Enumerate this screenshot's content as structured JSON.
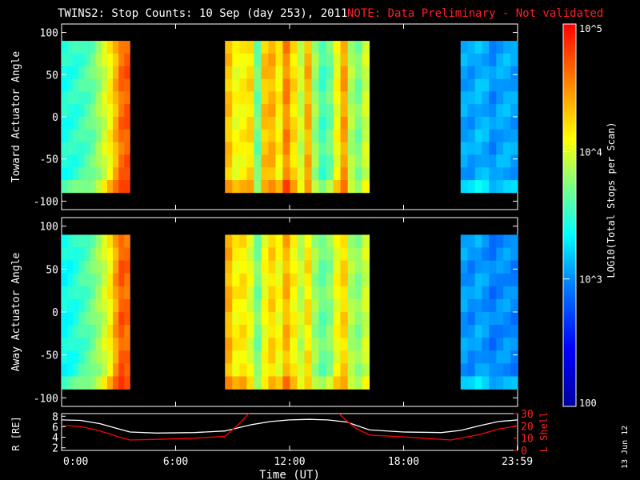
{
  "title": "TWINS2: Stop Counts: 10 Sep (day 253), 2011",
  "note": "NOTE: Data Preliminary - Not validated",
  "date_stamp": "13 Jun 12",
  "colorbar": {
    "label": "LOG10(Total Stops per Scan)",
    "ticks": [
      "10^5",
      "10^4",
      "10^3",
      "100"
    ],
    "tick_values": [
      100000,
      10000,
      1000,
      100
    ],
    "colors": [
      "#0000a0",
      "#0000ff",
      "#0080ff",
      "#00ffff",
      "#80ff80",
      "#ffff00",
      "#ff8000",
      "#ff0000"
    ]
  },
  "chart_data": [
    {
      "type": "heatmap",
      "ylabel": "Toward Actuator Angle",
      "ylim": [
        -110,
        110
      ],
      "yticks": [
        "100",
        "50",
        "0",
        "-50",
        "-100"
      ],
      "ytick_values": [
        100,
        50,
        0,
        -50,
        -100
      ],
      "xlim": [
        0,
        24
      ],
      "angle_range": [
        -90,
        90
      ],
      "data_intervals": [
        {
          "start": 0.0,
          "end": 3.6,
          "level": [
            0.46,
            0.47,
            0.48,
            0.5,
            0.52,
            0.55,
            0.6,
            0.66,
            0.72,
            0.8,
            0.88,
            0.9
          ]
        },
        {
          "start": 8.6,
          "end": 16.2,
          "level": [
            0.78,
            0.7,
            0.72,
            0.75,
            0.55,
            0.78,
            0.8,
            0.72,
            0.85,
            0.75,
            0.65,
            0.8,
            0.6,
            0.5,
            0.55,
            0.7,
            0.82,
            0.62,
            0.56,
            0.66
          ]
        },
        {
          "start": 21.0,
          "end": 24.0,
          "level": [
            0.33,
            0.32,
            0.35,
            0.34,
            0.3,
            0.33,
            0.34,
            0.32
          ]
        }
      ]
    },
    {
      "type": "heatmap",
      "ylabel": "Away Actuator Angle",
      "ylim": [
        -110,
        110
      ],
      "yticks": [
        "100",
        "50",
        "0",
        "-50",
        "-100"
      ],
      "ytick_values": [
        100,
        50,
        0,
        -50,
        -100
      ],
      "xlim": [
        0,
        24
      ],
      "angle_range": [
        -90,
        90
      ],
      "data_intervals": [
        {
          "start": 0.0,
          "end": 3.6,
          "level": [
            0.44,
            0.45,
            0.47,
            0.5,
            0.52,
            0.56,
            0.6,
            0.66,
            0.72,
            0.82,
            0.9,
            0.88
          ]
        },
        {
          "start": 8.6,
          "end": 16.2,
          "level": [
            0.8,
            0.72,
            0.74,
            0.68,
            0.56,
            0.7,
            0.76,
            0.7,
            0.8,
            0.72,
            0.64,
            0.74,
            0.6,
            0.54,
            0.58,
            0.7,
            0.76,
            0.62,
            0.58,
            0.66
          ]
        },
        {
          "start": 21.0,
          "end": 24.0,
          "level": [
            0.32,
            0.3,
            0.33,
            0.31,
            0.28,
            0.3,
            0.31,
            0.29
          ]
        }
      ]
    },
    {
      "type": "line",
      "xlabel": "Time (UT)",
      "ylabel": "R [RE]",
      "y2label": "L Shell",
      "xlim": [
        0,
        24
      ],
      "ylim": [
        1.5,
        8.5
      ],
      "y2lim": [
        0,
        30
      ],
      "xticks": [
        "0:00",
        "6:00",
        "12:00",
        "18:00",
        "23:59"
      ],
      "xtick_values": [
        0,
        6,
        12,
        18,
        23.98
      ],
      "yticks": [
        "8",
        "6",
        "4",
        "2"
      ],
      "ytick_values": [
        8,
        6,
        4,
        2
      ],
      "y2ticks": [
        "30",
        "20",
        "10",
        "0"
      ],
      "y2tick_values": [
        30,
        20,
        10,
        0
      ],
      "series": [
        {
          "color": "#ffffff",
          "x": [
            0,
            1,
            2,
            3,
            3.6,
            5,
            7,
            8.6,
            10,
            11,
            12,
            13,
            14,
            15,
            16.2,
            18,
            20,
            21,
            22,
            23,
            24
          ],
          "y": [
            7.3,
            7.2,
            6.6,
            5.6,
            5.0,
            4.8,
            4.9,
            5.2,
            6.4,
            7.0,
            7.3,
            7.4,
            7.3,
            6.9,
            5.4,
            5.0,
            4.9,
            5.3,
            6.2,
            7.0,
            7.3
          ]
        },
        {
          "color": "#ff0000",
          "axis": "y2",
          "x": [
            0,
            1,
            2,
            3,
            3.6,
            5,
            7,
            8.6,
            9,
            9.5,
            10,
            14.4,
            15,
            15.5,
            16.2,
            18,
            19,
            20.5,
            22,
            23,
            24
          ],
          "y": [
            20.5,
            19.5,
            16,
            11,
            8.5,
            9,
            10,
            11.5,
            17,
            24,
            33,
            33,
            24,
            18,
            12.5,
            11,
            10,
            8.5,
            13,
            17.5,
            20
          ]
        }
      ]
    }
  ]
}
